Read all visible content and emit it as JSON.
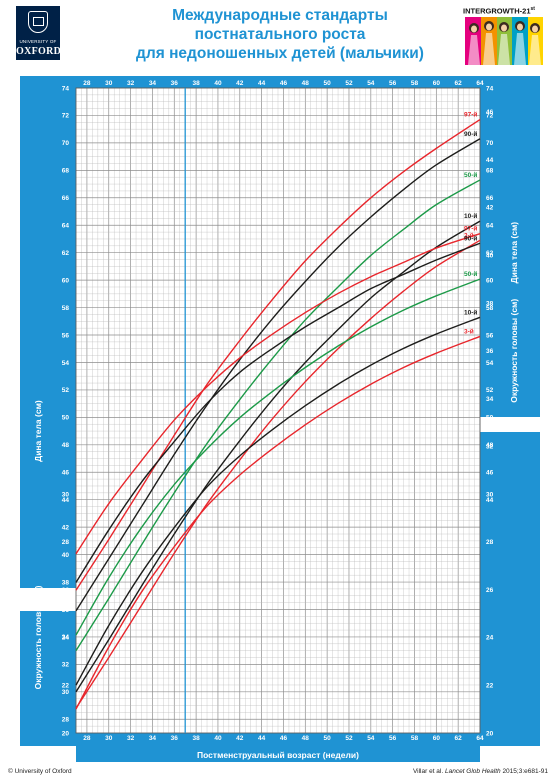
{
  "header": {
    "title_lines": [
      "Международные стандарты",
      "постнатального роста",
      "для недоношенных детей (мальчики)"
    ],
    "logo_top": "UNIVERSITY OF",
    "logo_bottom": "OXFORD",
    "brand": "INTERGROWTH-21",
    "brand_sup": "st"
  },
  "footer": {
    "left": "© University of Oxford",
    "right_prefix": "Villar et al. ",
    "right_journal": "Lancet Glob Health",
    "right_suffix": " 2015;3:e681-91"
  },
  "colors": {
    "frame": "#1f93d3",
    "grid": "#b9b9b9",
    "red": "#e8262c",
    "black": "#1d1d1b",
    "green": "#1c9a48",
    "marker": "#1f93d3",
    "title": "#1f93d3"
  },
  "chart_data": [
    {
      "type": "line",
      "name": "length",
      "ylabel": "Дина тела (см)",
      "xlabel": "Постменструальный возраст (недели)",
      "xlim": [
        27,
        64
      ],
      "ylim": [
        27,
        74
      ],
      "left_ticks": [
        28,
        30,
        32,
        34,
        36,
        38,
        40,
        42,
        44,
        46,
        48,
        50,
        52,
        54,
        56,
        58,
        60,
        62,
        64,
        66,
        68,
        70,
        72,
        74
      ],
      "right_ticks": [
        44,
        46,
        48,
        50,
        52,
        54,
        56,
        58,
        60,
        62,
        64,
        66,
        68,
        70,
        72,
        74
      ],
      "x": [
        27,
        30,
        33,
        36,
        39,
        42,
        45,
        48,
        51,
        54,
        57,
        60,
        64
      ],
      "series": [
        {
          "name": "97-й",
          "color": "red",
          "values": [
            37.4,
            41.1,
            44.9,
            48.7,
            52.4,
            55.6,
            58.6,
            61.4,
            63.8,
            66.0,
            67.9,
            69.6,
            71.7
          ]
        },
        {
          "name": "90-й",
          "color": "black",
          "values": [
            35.9,
            39.7,
            43.5,
            47.3,
            50.9,
            54.2,
            57.2,
            59.9,
            62.4,
            64.6,
            66.6,
            68.4,
            70.3
          ]
        },
        {
          "name": "50-й",
          "color": "green",
          "values": [
            33.0,
            36.8,
            40.7,
            44.5,
            48.1,
            51.3,
            54.3,
            57.1,
            59.5,
            61.8,
            63.7,
            65.5,
            67.3
          ]
        },
        {
          "name": "10-й",
          "color": "black",
          "values": [
            30.0,
            33.8,
            37.7,
            41.5,
            45.1,
            48.3,
            51.3,
            54.0,
            56.4,
            58.7,
            60.6,
            62.4,
            64.3
          ]
        },
        {
          "name": "3-й",
          "color": "red",
          "values": [
            28.8,
            32.5,
            36.3,
            40.1,
            43.7,
            46.9,
            49.9,
            52.6,
            55.0,
            57.2,
            59.2,
            61.0,
            62.9
          ]
        }
      ]
    },
    {
      "type": "line",
      "name": "head",
      "ylabel": "Окружность головы (см)",
      "xlim": [
        27,
        64
      ],
      "ylim": [
        20,
        47
      ],
      "left_ticks": [
        20,
        22,
        24,
        26,
        28,
        30
      ],
      "right_ticks": [
        20,
        22,
        24,
        26,
        28,
        30,
        32,
        34,
        36,
        38,
        40,
        42,
        44,
        46
      ],
      "x": [
        27,
        30,
        33,
        36,
        39,
        42,
        45,
        48,
        51,
        54,
        57,
        60,
        64
      ],
      "series": [
        {
          "name": "97-й",
          "color": "red",
          "values": [
            27.5,
            29.6,
            31.4,
            33.1,
            34.5,
            35.7,
            36.7,
            37.6,
            38.4,
            39.1,
            39.7,
            40.3,
            40.9
          ]
        },
        {
          "name": "90-й",
          "color": "black",
          "values": [
            26.3,
            28.5,
            30.5,
            32.2,
            33.8,
            35.1,
            36.1,
            37.0,
            37.8,
            38.6,
            39.2,
            39.8,
            40.5
          ]
        },
        {
          "name": "50-й",
          "color": "green",
          "values": [
            24.1,
            26.5,
            28.6,
            30.4,
            31.9,
            33.2,
            34.3,
            35.3,
            36.2,
            37.0,
            37.7,
            38.3,
            39.0
          ]
        },
        {
          "name": "10-й",
          "color": "black",
          "values": [
            22.0,
            24.5,
            26.7,
            28.6,
            30.3,
            31.6,
            32.7,
            33.7,
            34.6,
            35.4,
            36.1,
            36.7,
            37.4
          ]
        },
        {
          "name": "3-й",
          "color": "red",
          "values": [
            21.0,
            23.6,
            25.9,
            27.8,
            29.5,
            30.8,
            31.9,
            32.9,
            33.8,
            34.6,
            35.3,
            35.9,
            36.6
          ]
        }
      ]
    }
  ],
  "x_ticks_top": [
    28,
    30,
    32,
    34,
    36,
    38,
    40,
    42,
    44,
    46,
    48,
    50,
    52,
    54,
    56,
    58,
    60,
    62,
    64
  ],
  "x_ticks_bottom": [
    28,
    30,
    32,
    34,
    36,
    38,
    40,
    42,
    44,
    46,
    48,
    50,
    52,
    54,
    56,
    58,
    60,
    62,
    64
  ],
  "marker_week": 37
}
